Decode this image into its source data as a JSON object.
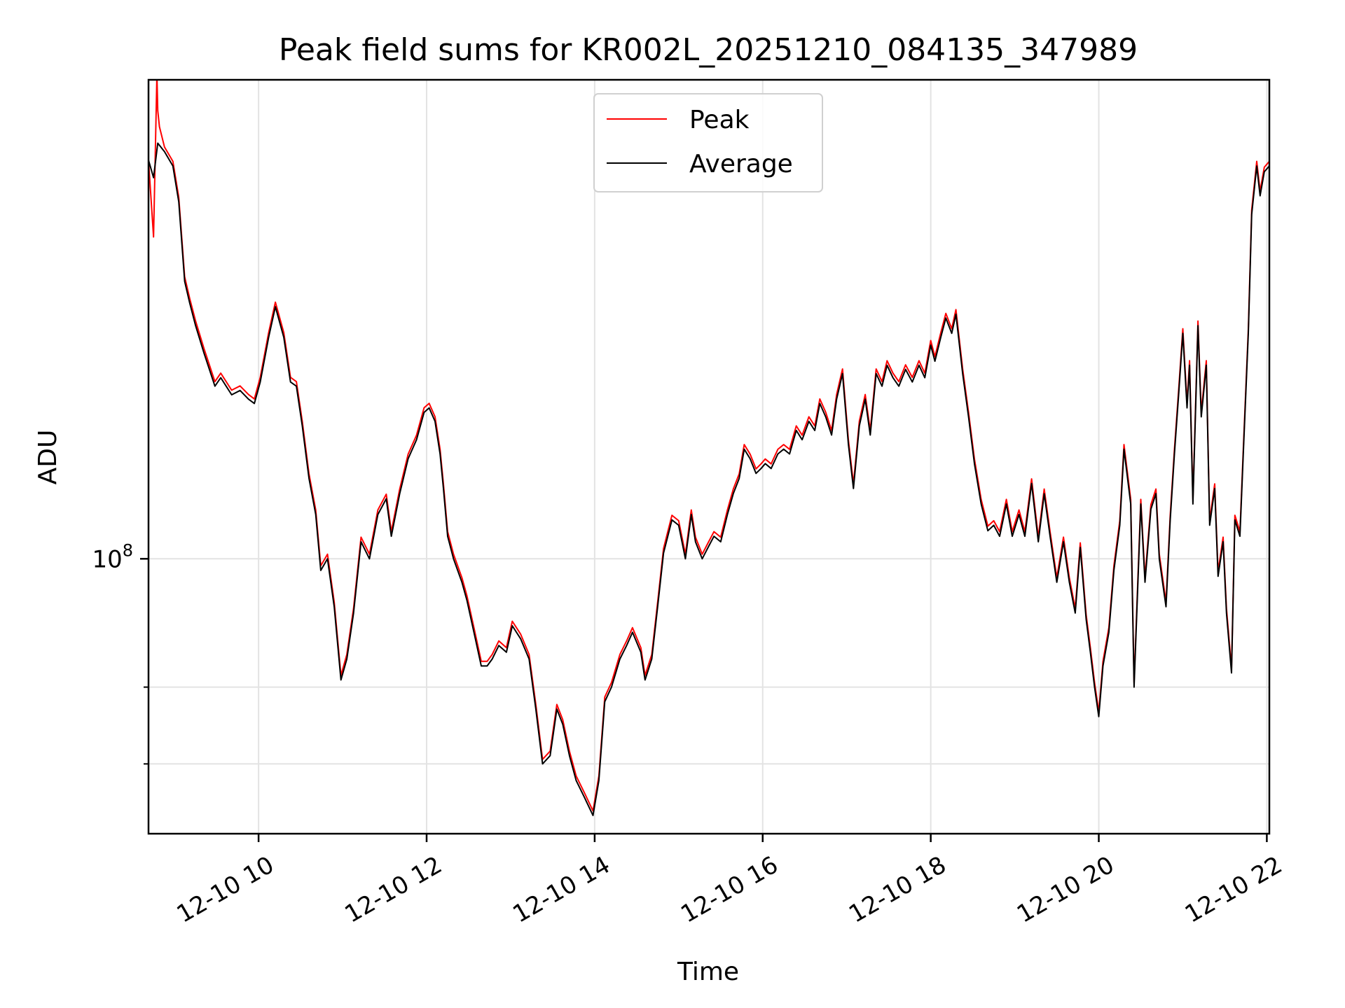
{
  "chart_data": {
    "type": "line",
    "title": "Peak field sums for KR002L_20251210_084135_347989",
    "xlabel": "Time",
    "ylabel": "ADU",
    "x_unit": "hours on 2025-12-10",
    "xlim": [
      8.69,
      22.03
    ],
    "ylim": [
      62000000,
      230000000
    ],
    "yscale": "log",
    "grid": true,
    "legend_position": "upper center",
    "x_ticks": [
      {
        "value": 10,
        "label": "12-10 10"
      },
      {
        "value": 12,
        "label": "12-10 12"
      },
      {
        "value": 14,
        "label": "12-10 14"
      },
      {
        "value": 16,
        "label": "12-10 16"
      },
      {
        "value": 18,
        "label": "12-10 18"
      },
      {
        "value": 20,
        "label": "12-10 20"
      },
      {
        "value": 22,
        "label": "12-10 22"
      }
    ],
    "y_major_tick": {
      "value": 100000000,
      "label_base": "10",
      "label_exp": "8"
    },
    "y_minor_ticks": [
      80000000,
      70000000
    ],
    "series": [
      {
        "name": "Peak",
        "color": "#ff0000",
        "spike": [
          {
            "x": 8.69,
            "y": 200000000
          },
          {
            "x": 8.75,
            "y": 175000000
          },
          {
            "x": 8.79,
            "y": 232000000
          },
          {
            "x": 8.8,
            "y": 218000000
          },
          {
            "x": 8.82,
            "y": 212000000
          }
        ]
      },
      {
        "name": "Average",
        "color": "#000000",
        "x": [
          8.69,
          8.75,
          8.8,
          8.88,
          8.98,
          9.05,
          9.12,
          9.18,
          9.25,
          9.35,
          9.48,
          9.55,
          9.68,
          9.78,
          9.88,
          9.95,
          10.02,
          10.12,
          10.2,
          10.3,
          10.38,
          10.45,
          10.52,
          10.6,
          10.68,
          10.74,
          10.82,
          10.9,
          10.98,
          11.05,
          11.13,
          11.22,
          11.32,
          11.42,
          11.52,
          11.58,
          11.68,
          11.78,
          11.88,
          11.97,
          12.03,
          12.1,
          12.16,
          12.2,
          12.25,
          12.32,
          12.42,
          12.48,
          12.58,
          12.65,
          12.72,
          12.78,
          12.86,
          12.95,
          13.02,
          13.12,
          13.22,
          13.3,
          13.38,
          13.47,
          13.55,
          13.62,
          13.7,
          13.78,
          13.88,
          13.98,
          14.05,
          14.12,
          14.2,
          14.3,
          14.38,
          14.45,
          14.55,
          14.6,
          14.68,
          14.75,
          14.82,
          14.92,
          15.0,
          15.08,
          15.15,
          15.2,
          15.28,
          15.35,
          15.42,
          15.5,
          15.58,
          15.65,
          15.72,
          15.78,
          15.85,
          15.92,
          15.98,
          16.03,
          16.1,
          16.18,
          16.25,
          16.32,
          16.4,
          16.47,
          16.55,
          16.62,
          16.68,
          16.75,
          16.82,
          16.88,
          16.95,
          17.02,
          17.08,
          17.15,
          17.22,
          17.28,
          17.35,
          17.42,
          17.48,
          17.55,
          17.62,
          17.7,
          17.78,
          17.86,
          17.93,
          18.0,
          18.05,
          18.12,
          18.18,
          18.25,
          18.3,
          18.38,
          18.45,
          18.52,
          18.6,
          18.68,
          18.75,
          18.82,
          18.9,
          18.97,
          19.05,
          19.12,
          19.2,
          19.28,
          19.35,
          19.42,
          19.5,
          19.58,
          19.65,
          19.72,
          19.78,
          19.85,
          19.9,
          19.95,
          20.0,
          20.05,
          20.12,
          20.18,
          20.25,
          20.3,
          20.38,
          20.42,
          20.5,
          20.55,
          20.62,
          20.68,
          20.72,
          20.8,
          20.85,
          20.9,
          20.95,
          21.0,
          21.05,
          21.08,
          21.12,
          21.18,
          21.22,
          21.28,
          21.32,
          21.38,
          21.42,
          21.48,
          21.52,
          21.58,
          21.62,
          21.68,
          21.72,
          21.78,
          21.82,
          21.88,
          21.92,
          21.97,
          22.03
        ],
        "y": [
          200000000,
          194000000,
          206000000,
          203000000,
          198000000,
          186000000,
          162000000,
          156000000,
          150000000,
          143000000,
          135000000,
          137000000,
          133000000,
          134000000,
          132000000,
          131000000,
          136000000,
          147000000,
          155000000,
          147000000,
          136000000,
          135000000,
          126000000,
          115000000,
          108000000,
          98000000,
          100000000,
          92000000,
          81000000,
          84000000,
          91000000,
          103000000,
          100000000,
          108000000,
          111000000,
          104000000,
          112000000,
          119000000,
          123000000,
          129000000,
          130000000,
          127000000,
          120000000,
          113000000,
          104000000,
          100000000,
          96000000,
          93000000,
          87000000,
          83000000,
          83000000,
          84000000,
          86000000,
          85000000,
          89000000,
          87000000,
          84000000,
          77000000,
          70000000,
          71000000,
          77000000,
          75000000,
          71000000,
          68000000,
          66000000,
          64000000,
          68000000,
          78000000,
          80000000,
          84000000,
          86000000,
          88000000,
          85000000,
          81000000,
          84000000,
          92000000,
          101000000,
          107000000,
          106000000,
          100000000,
          108000000,
          103000000,
          100000000,
          102000000,
          104000000,
          103000000,
          108000000,
          112000000,
          115000000,
          121000000,
          119000000,
          116000000,
          117000000,
          118000000,
          117000000,
          120000000,
          121000000,
          120000000,
          125000000,
          123000000,
          127000000,
          125000000,
          131000000,
          128000000,
          124000000,
          132000000,
          138000000,
          122000000,
          113000000,
          126000000,
          132000000,
          124000000,
          138000000,
          135000000,
          140000000,
          137000000,
          135000000,
          139000000,
          136000000,
          140000000,
          137000000,
          145000000,
          141000000,
          147000000,
          152000000,
          148000000,
          153000000,
          138000000,
          128000000,
          118000000,
          110000000,
          105000000,
          106000000,
          104000000,
          110000000,
          104000000,
          108000000,
          104000000,
          114000000,
          103000000,
          112000000,
          104000000,
          96000000,
          103000000,
          96000000,
          91000000,
          102000000,
          90000000,
          85000000,
          80000000,
          76000000,
          83000000,
          88000000,
          98000000,
          106000000,
          121000000,
          110000000,
          80000000,
          110000000,
          96000000,
          109000000,
          112000000,
          100000000,
          92000000,
          107000000,
          120000000,
          133000000,
          148000000,
          130000000,
          140000000,
          110000000,
          150000000,
          128000000,
          140000000,
          106000000,
          113000000,
          97000000,
          103000000,
          91000000,
          82000000,
          107000000,
          104000000,
          120000000,
          148000000,
          182000000,
          198000000,
          188000000,
          196000000,
          198000000
        ]
      }
    ],
    "legend": [
      {
        "label": "Peak",
        "color": "#ff0000"
      },
      {
        "label": "Average",
        "color": "#000000"
      }
    ]
  }
}
